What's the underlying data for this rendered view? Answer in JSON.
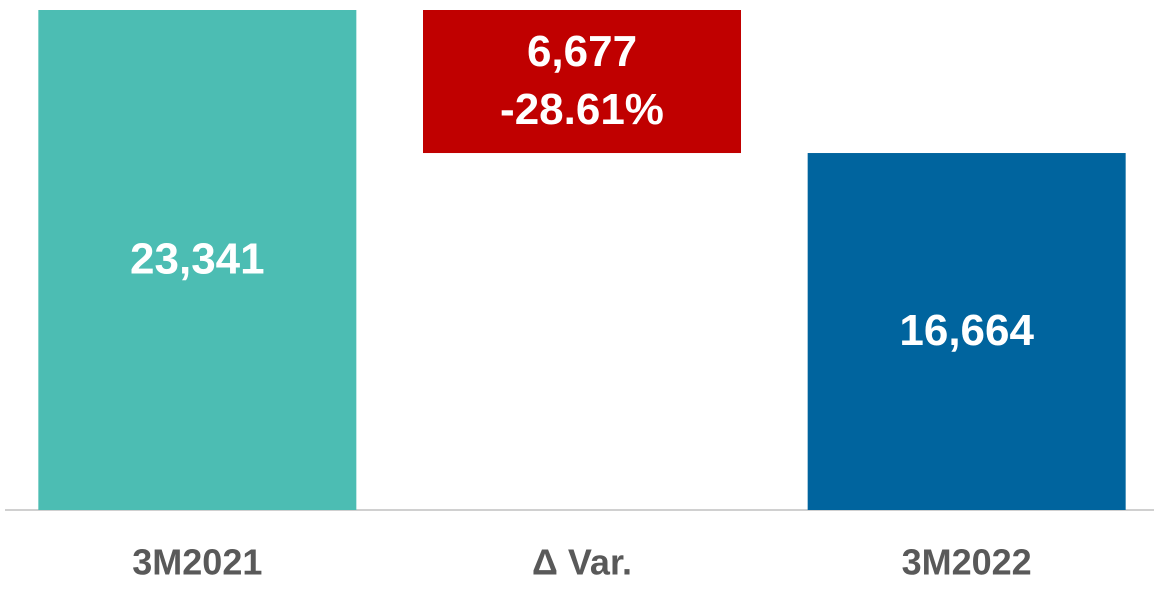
{
  "chart_data": {
    "type": "waterfall",
    "categories": [
      "3M2021",
      "Δ Var.",
      "3M2022"
    ],
    "measures": [
      "absolute",
      "relative",
      "total"
    ],
    "values": [
      23341,
      -6677,
      16664
    ],
    "value_labels": [
      "23,341",
      "6,677",
      "16,664"
    ],
    "colors": [
      "#4cbdb3",
      "#c00000",
      "#00649e"
    ],
    "delta_percent": {
      "value": -28.61,
      "label": "-28.61%"
    }
  }
}
